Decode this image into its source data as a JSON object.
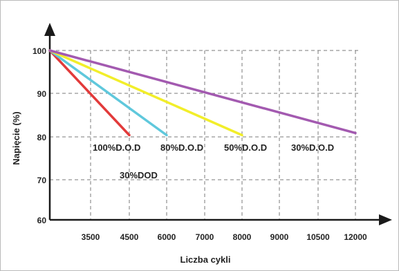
{
  "chart_data": {
    "type": "line",
    "title": "",
    "xlabel": "Liczba cykli",
    "ylabel": "Napięcie (%)",
    "x_ticks": [
      "3500",
      "4500",
      "6000",
      "7000",
      "8000",
      "9000",
      "10500",
      "12000"
    ],
    "y_ticks": [
      "100",
      "90",
      "80",
      "70",
      "60"
    ],
    "ylim": [
      60,
      100
    ],
    "grid": true,
    "legend": "none",
    "series": [
      {
        "color": "#e23a3a",
        "values": [
          {
            "x": 0,
            "y": 100
          },
          {
            "x": 4500,
            "y": 80
          }
        ]
      },
      {
        "color": "#5fc8dc",
        "values": [
          {
            "x": 0,
            "y": 100
          },
          {
            "x": 6000,
            "y": 80
          }
        ]
      },
      {
        "color": "#f2ee2a",
        "values": [
          {
            "x": 0,
            "y": 100
          },
          {
            "x": 8000,
            "y": 80
          }
        ]
      },
      {
        "color": "#a35ab0",
        "values": [
          {
            "x": 0,
            "y": 100
          },
          {
            "x": 12000,
            "y": 80.5
          }
        ]
      }
    ],
    "annotations": [
      "100%D.O.D",
      "80%D.O.D",
      "50%D.O.D",
      "30%D.O.D",
      "30%DOD"
    ]
  }
}
